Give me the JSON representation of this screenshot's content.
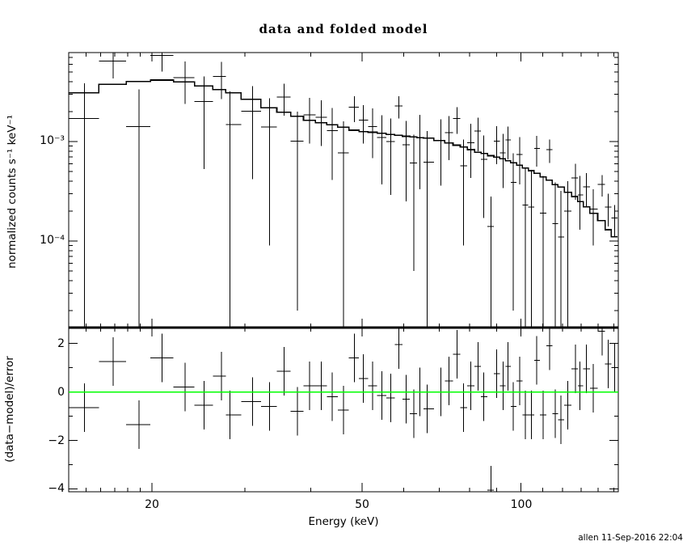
{
  "title": "data and folded model",
  "credit": "allen 11-Sep-2016 22:04",
  "xlabel": "Energy (keV)",
  "xtick_labels": [
    "20",
    "50",
    "100"
  ],
  "top_panel": {
    "ylabel": "normalized counts s⁻¹ keV⁻¹",
    "ytick_labels": [
      "10⁻³",
      "10⁻⁴"
    ]
  },
  "bottom_panel": {
    "ylabel": "(data−model)/error",
    "ytick_labels": [
      "2",
      "0",
      "−2",
      "−4"
    ]
  },
  "chart_data": {
    "type": "scatter",
    "description": "X-ray spectrum: data points with 1-sigma error bars and stepped folded model (top, log-log); fit residuals (data-model)/error with green zero line (bottom)",
    "x_axis": {
      "label": "Energy (keV)",
      "scale": "log",
      "range": [
        13.9,
        152.5
      ],
      "major_ticks": [
        20,
        50,
        100
      ],
      "minor_ticks": [
        15,
        16,
        17,
        18,
        19,
        30,
        40,
        60,
        70,
        80,
        90,
        110,
        120,
        130,
        140,
        150
      ]
    },
    "top_axis": {
      "label": "normalized counts s-1 keV-1",
      "scale": "log",
      "range": [
        1.35e-05,
        0.00785
      ],
      "major_ticks": [
        0.001,
        0.0001
      ]
    },
    "bottom_axis": {
      "label": "(data-model)/error",
      "scale": "linear",
      "range": [
        -4.1,
        2.65
      ],
      "major_ticks": [
        2,
        0,
        -2,
        -4
      ],
      "minor_ticks": [
        1,
        -1,
        -3
      ],
      "zero_line_color": "#00FF00",
      "residual_error_half_length": 1
    },
    "points": [
      {
        "e": 14.9,
        "m": 0.0031,
        "d": 0.00171,
        "s": 0.00214,
        "r": -0.65
      },
      {
        "e": 16.9,
        "m": 0.00375,
        "d": 0.00647,
        "s": 0.00218,
        "r": 1.25
      },
      {
        "e": 18.9,
        "m": 0.004,
        "d": 0.00141,
        "s": 0.00192,
        "r": -1.35
      },
      {
        "e": 20.9,
        "m": 0.00415,
        "d": 0.00735,
        "s": 0.00228,
        "r": 1.4
      },
      {
        "e": 23.1,
        "m": 0.00398,
        "d": 0.00438,
        "s": 0.00199,
        "r": 0.2
      },
      {
        "e": 25.1,
        "m": 0.00362,
        "d": 0.00252,
        "s": 0.00199,
        "r": -0.55
      },
      {
        "e": 27.1,
        "m": 0.00332,
        "d": 0.00451,
        "s": 0.00183,
        "r": 0.65
      },
      {
        "e": 28.1,
        "m": 0.0031,
        "d": 0.00148,
        "s": 0.00171,
        "r": -0.95
      },
      {
        "e": 31.0,
        "m": 0.00265,
        "d": 0.00201,
        "s": 0.00159,
        "r": -0.4
      },
      {
        "e": 33.4,
        "m": 0.00218,
        "d": 0.0014,
        "s": 0.00131,
        "r": -0.6
      },
      {
        "e": 35.6,
        "m": 0.00197,
        "d": 0.00281,
        "s": 0.00099,
        "r": 0.85
      },
      {
        "e": 37.7,
        "m": 0.0018,
        "d": 0.00101,
        "s": 0.00099,
        "r": -0.8
      },
      {
        "e": 39.8,
        "m": 0.00163,
        "d": 0.00185,
        "s": 0.0009,
        "r": 0.25
      },
      {
        "e": 41.9,
        "m": 0.00154,
        "d": 0.00175,
        "s": 0.00085,
        "r": 0.25
      },
      {
        "e": 43.9,
        "m": 0.00147,
        "d": 0.00129,
        "s": 0.00088,
        "r": -0.2
      },
      {
        "e": 46.1,
        "m": 0.00139,
        "d": 0.00077,
        "s": 0.00083,
        "r": -0.75
      },
      {
        "e": 48.4,
        "m": 0.0013,
        "d": 0.00221,
        "s": 0.00065,
        "r": 1.4
      },
      {
        "e": 50.3,
        "m": 0.00126,
        "d": 0.00164,
        "s": 0.00069,
        "r": 0.55
      },
      {
        "e": 52.4,
        "m": 0.00124,
        "d": 0.00142,
        "s": 0.00074,
        "r": 0.25
      },
      {
        "e": 54.5,
        "m": 0.00121,
        "d": 0.0011,
        "s": 0.00073,
        "r": -0.15
      },
      {
        "e": 56.7,
        "m": 0.00118,
        "d": 0.001,
        "s": 0.00071,
        "r": -0.25
      },
      {
        "e": 58.7,
        "m": 0.00116,
        "d": 0.00228,
        "s": 0.00058,
        "r": 1.95
      },
      {
        "e": 60.6,
        "m": 0.00113,
        "d": 0.00093,
        "s": 0.00068,
        "r": -0.3
      },
      {
        "e": 62.7,
        "m": 0.00111,
        "d": 0.00061,
        "s": 0.00056,
        "r": -0.9
      },
      {
        "e": 64.4,
        "m": 0.00109,
        "d": 0.00109,
        "s": 0.00076,
        "r": 0.0
      },
      {
        "e": 66.4,
        "m": 0.00108,
        "d": 0.00062,
        "s": 0.00065,
        "r": -0.7
      },
      {
        "e": 70.5,
        "m": 0.00102,
        "d": 0.00102,
        "s": 0.00066,
        "r": 0.0
      },
      {
        "e": 73.1,
        "m": 0.00097,
        "d": 0.00123,
        "s": 0.00058,
        "r": 0.45
      },
      {
        "e": 75.7,
        "m": 0.00092,
        "d": 0.0017,
        "s": 0.00051,
        "r": 1.55
      },
      {
        "e": 77.9,
        "m": 0.00088,
        "d": 0.00057,
        "s": 0.00048,
        "r": -0.65
      },
      {
        "e": 80.4,
        "m": 0.00083,
        "d": 0.00097,
        "s": 0.00054,
        "r": 0.25
      },
      {
        "e": 83.0,
        "m": 0.00078,
        "d": 0.00127,
        "s": 0.00047,
        "r": 1.05
      },
      {
        "e": 85.1,
        "m": 0.00076,
        "d": 0.00066,
        "s": 0.00049,
        "r": -0.2
      },
      {
        "e": 87.8,
        "m": 0.00072,
        "d": 0.00014,
        "s": 0.00014,
        "r": -4.05
      },
      {
        "e": 90.0,
        "m": 0.0007,
        "d": 0.00101,
        "s": 0.00042,
        "r": 0.75
      },
      {
        "e": 92.5,
        "m": 0.00067,
        "d": 0.00077,
        "s": 0.00043,
        "r": 0.25
      },
      {
        "e": 94.5,
        "m": 0.00064,
        "d": 0.00104,
        "s": 0.00038,
        "r": 1.05
      },
      {
        "e": 96.8,
        "m": 0.00061,
        "d": 0.00039,
        "s": 0.00037,
        "r": -0.6
      },
      {
        "e": 99.5,
        "m": 0.00058,
        "d": 0.00074,
        "s": 0.00037,
        "r": 0.45
      },
      {
        "e": 101.9,
        "m": 0.00054,
        "d": 0.00023,
        "s": 0.00032,
        "r": -0.95
      },
      {
        "e": 104.7,
        "m": 0.00051,
        "d": 0.00022,
        "s": 0.0003,
        "r": -0.95
      },
      {
        "e": 107.2,
        "m": 0.00048,
        "d": 0.00085,
        "s": 0.00029,
        "r": 1.3
      },
      {
        "e": 110.2,
        "m": 0.00044,
        "d": 0.00019,
        "s": 0.00026,
        "r": -0.95
      },
      {
        "e": 113.3,
        "m": 0.00041,
        "d": 0.00083,
        "s": 0.00022,
        "r": 1.9
      },
      {
        "e": 116.1,
        "m": 0.00037,
        "d": 0.00015,
        "s": 0.00024,
        "r": -0.9
      },
      {
        "e": 119.0,
        "m": 0.00035,
        "d": 0.00011,
        "s": 0.00021,
        "r": -1.15
      },
      {
        "e": 122.8,
        "m": 0.00031,
        "d": 0.0002,
        "s": 0.0002,
        "r": -0.55
      },
      {
        "e": 126.8,
        "m": 0.00028,
        "d": 0.00043,
        "s": 0.00017,
        "r": 0.95
      },
      {
        "e": 129.5,
        "m": 0.00025,
        "d": 0.00029,
        "s": 0.00016,
        "r": 0.25
      },
      {
        "e": 133.2,
        "m": 0.00022,
        "d": 0.00035,
        "s": 0.00013,
        "r": 0.95
      },
      {
        "e": 137.1,
        "m": 0.00019,
        "d": 0.00021,
        "s": 0.00012,
        "r": 0.15
      },
      {
        "e": 142.6,
        "m": 0.00016,
        "d": 0.00037,
        "s": 9e-05,
        "r": 2.5
      },
      {
        "e": 146.3,
        "m": 0.00013,
        "d": 0.00022,
        "s": 8e-05,
        "r": 1.15
      },
      {
        "e": 150.5,
        "m": 0.00011,
        "d": 0.00017,
        "s": 6e-05,
        "r": 1.0
      }
    ]
  }
}
